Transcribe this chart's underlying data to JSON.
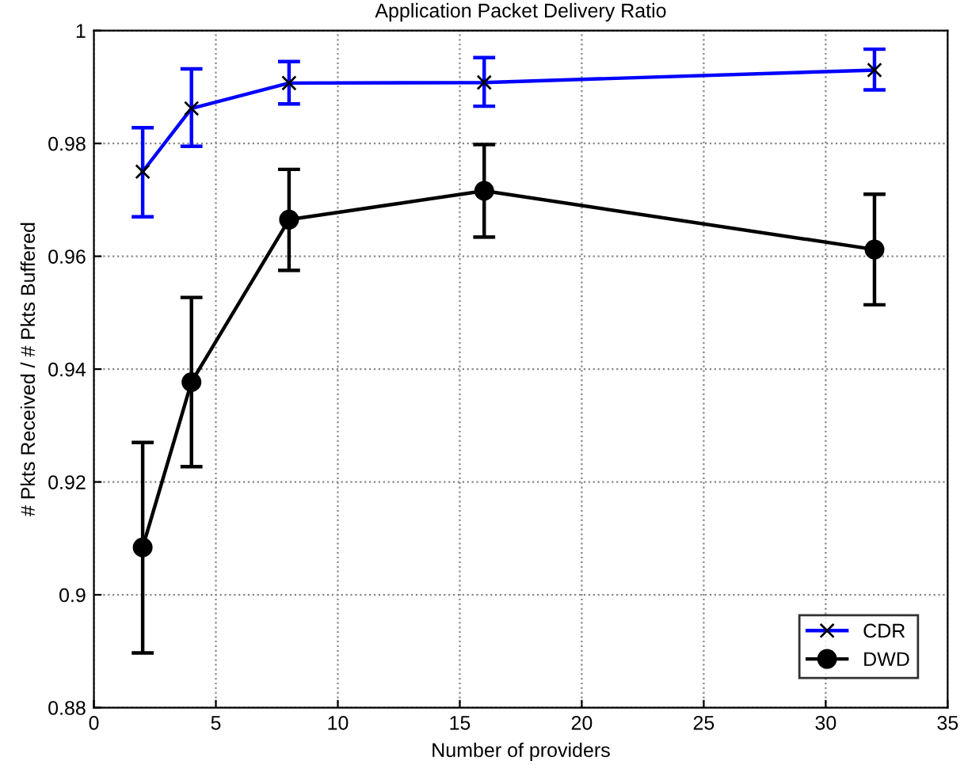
{
  "chart_data": {
    "type": "line",
    "title": "Application Packet Delivery Ratio",
    "xlabel": "Number of providers",
    "ylabel": "# Pkts Received / # Pkts Buffered",
    "x": [
      2,
      4,
      8,
      16,
      32
    ],
    "series": [
      {
        "name": "CDR",
        "color": "#0000ff",
        "marker": "cross",
        "values": [
          0.975,
          0.9862,
          0.9907,
          0.9908,
          0.993
        ],
        "errors": [
          [
            0.967,
            0.9828
          ],
          [
            0.9795,
            0.9932
          ],
          [
            0.987,
            0.9945
          ],
          [
            0.9866,
            0.9952
          ],
          [
            0.9895,
            0.9967
          ]
        ]
      },
      {
        "name": "DWD",
        "color": "#000000",
        "marker": "circle",
        "values": [
          0.9084,
          0.9377,
          0.9665,
          0.9716,
          0.9612
        ],
        "errors": [
          [
            0.8897,
            0.927
          ],
          [
            0.9227,
            0.9527
          ],
          [
            0.9575,
            0.9754
          ],
          [
            0.9634,
            0.9798
          ],
          [
            0.9514,
            0.971
          ]
        ]
      }
    ],
    "xlim": [
      0,
      35
    ],
    "xticks": [
      0,
      5,
      10,
      15,
      20,
      25,
      30,
      35
    ],
    "ylim": [
      0.88,
      1
    ],
    "yticks": [
      0.88,
      0.9,
      0.92,
      0.94,
      0.96,
      0.98,
      1
    ],
    "grid": true,
    "legend": "bottom right"
  }
}
